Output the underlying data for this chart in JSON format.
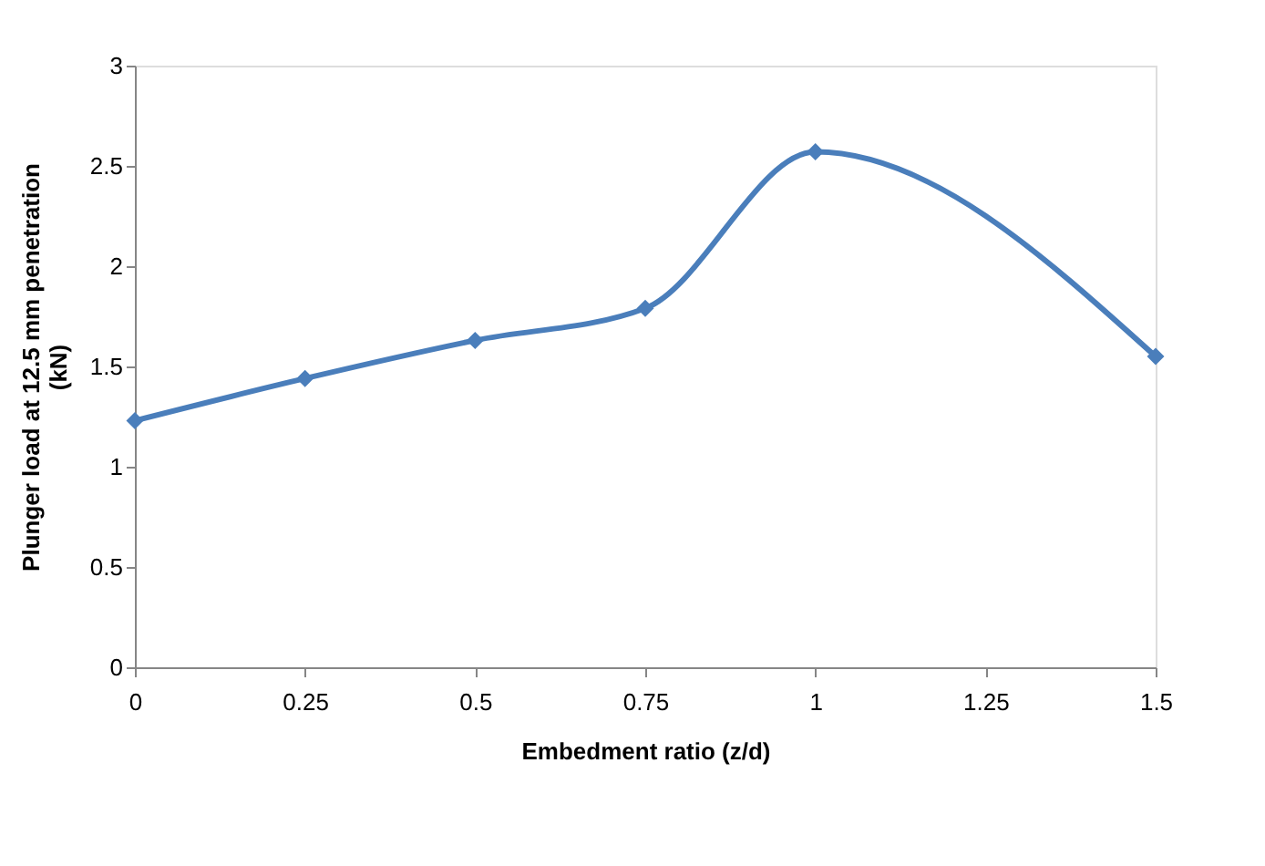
{
  "chart_data": {
    "type": "line",
    "xlabel": "Embedment ratio (z/d)",
    "ylabel": "Plunger load at 12.5 mm penetration (kN)",
    "x": [
      0,
      0.25,
      0.5,
      0.75,
      1,
      1.5
    ],
    "series": [
      {
        "color": "#4a7ebb",
        "values": [
          1.23,
          1.44,
          1.63,
          1.79,
          2.57,
          1.55
        ]
      }
    ],
    "xlim": [
      0,
      1.5
    ],
    "xticks": [
      0,
      0.25,
      0.5,
      0.75,
      1,
      1.25,
      1.5
    ],
    "ylim": [
      0,
      3
    ],
    "yticks": [
      0,
      0.5,
      1,
      1.5,
      2,
      2.5,
      3
    ],
    "marker": "diamond",
    "line_style": "solid",
    "grid": false
  }
}
